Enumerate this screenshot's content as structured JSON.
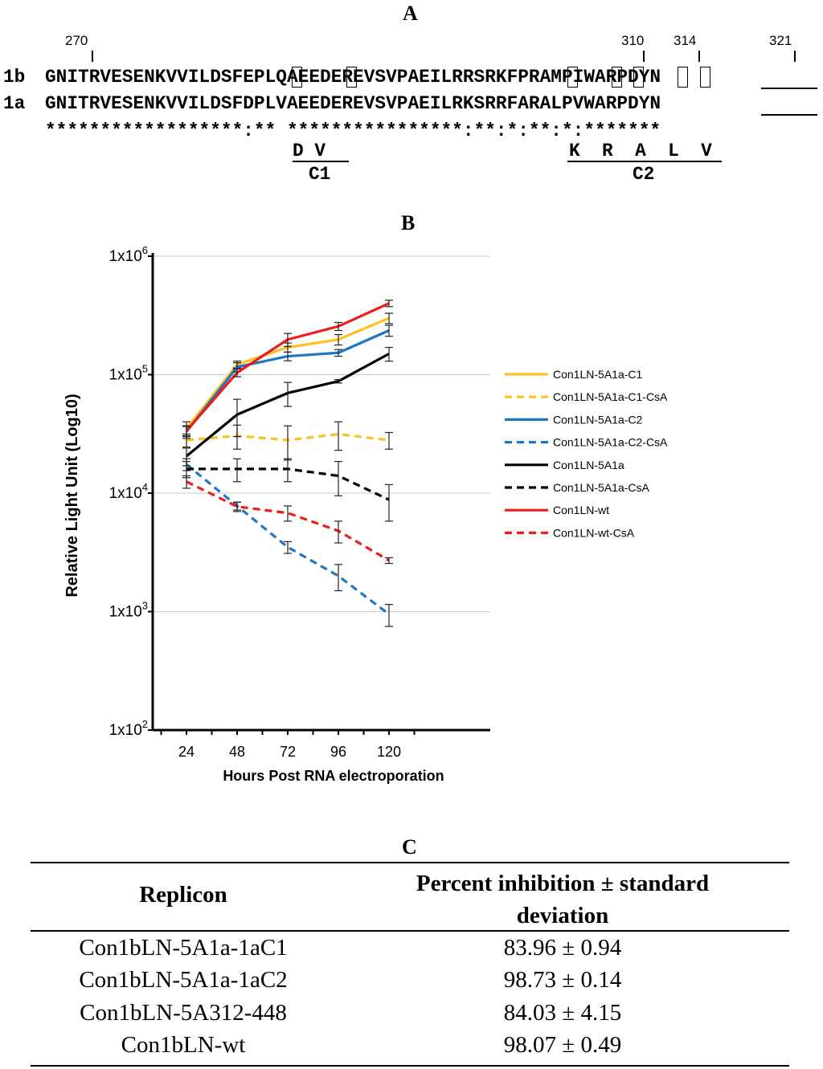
{
  "panel_a": {
    "label": "A",
    "positions": [
      "270",
      "310",
      "314",
      "321"
    ],
    "seq_1b_name": "1b",
    "seq_1b": "GNITRVESENKVVILDSFEPLQAEEDEREVSVPAEILRRSRKFPRAMPIWARPDYN",
    "seq_1a_name": "1a",
    "seq_1a": "GNITRVESENKVVILDSFDPLVAEEDEREVSVPAEILRKSRRFARALPVWARPDYN",
    "conservation": "******************:** ****************:**:*:**:*:*******",
    "c1_residues": "D V",
    "c1_label": "C1",
    "c2_residues": "K  R  A  L  V",
    "c2_label": "C2"
  },
  "panel_b": {
    "label": "B"
  },
  "chart_data": {
    "type": "line",
    "title": "",
    "xlabel": "Hours Post RNA electroporation",
    "ylabel": "Relative Light Unit (Log10)",
    "yscale": "log",
    "ylim": [
      100,
      1000000
    ],
    "x": [
      24,
      48,
      72,
      96,
      120
    ],
    "x_tick_labels": [
      "24",
      "48",
      "72",
      "96",
      "120"
    ],
    "y_tick_labels": [
      "1x10^6",
      "1x10^5",
      "1x10^4",
      "1x10^3",
      "1x10^2"
    ],
    "legend_position": "right",
    "series": [
      {
        "name": "Con1LN-5A1a-C1",
        "color": "#FFC020",
        "dashed": false,
        "values": [
          35000,
          122000,
          170000,
          198000,
          300000
        ],
        "errors": [
          5000,
          8000,
          15000,
          20000,
          30000
        ]
      },
      {
        "name": "Con1LN-5A1a-C1-CsA",
        "color": "#FFC020",
        "dashed": true,
        "values": [
          28000,
          30500,
          28000,
          31500,
          28000
        ],
        "errors": [
          3500,
          7000,
          9000,
          8500,
          4500
        ]
      },
      {
        "name": "Con1LN-5A1a-C2",
        "color": "#1F77C4",
        "dashed": false,
        "values": [
          33000,
          116000,
          143000,
          153000,
          236000
        ],
        "errors": [
          4000,
          10000,
          12000,
          10000,
          25000
        ]
      },
      {
        "name": "Con1LN-5A1a-C2-CsA",
        "color": "#1F77C4",
        "dashed": true,
        "values": [
          17500,
          7800,
          3500,
          2000,
          950
        ],
        "errors": [
          2000,
          600,
          400,
          500,
          200
        ]
      },
      {
        "name": "Con1LN-5A1a",
        "color": "#000000",
        "dashed": false,
        "values": [
          20500,
          46000,
          70000,
          88000,
          150000
        ],
        "errors": [
          3500,
          16000,
          16000,
          3000,
          20000
        ]
      },
      {
        "name": "Con1LN-5A1a-CsA",
        "color": "#000000",
        "dashed": true,
        "values": [
          16000,
          16000,
          16000,
          14000,
          8800
        ],
        "errors": [
          2500,
          3500,
          3500,
          4500,
          3000
        ]
      },
      {
        "name": "Con1LN-wt",
        "color": "#EE1C1C",
        "dashed": false,
        "values": [
          33500,
          104000,
          198000,
          256000,
          400000
        ],
        "errors": [
          3000,
          8000,
          25000,
          20000,
          25000
        ]
      },
      {
        "name": "Con1LN-wt-CsA",
        "color": "#EE1C1C",
        "dashed": true,
        "values": [
          12500,
          7700,
          6800,
          4800,
          2700
        ],
        "errors": [
          1500,
          700,
          1000,
          1000,
          150
        ]
      }
    ]
  },
  "panel_c": {
    "label": "C",
    "headers": [
      "Replicon",
      "Percent inhibition ± standard deviation"
    ],
    "rows": [
      [
        "Con1bLN-5A1a-1aC1",
        "83.96 ± 0.94"
      ],
      [
        "Con1bLN-5A1a-1aC2",
        "98.73 ± 0.14"
      ],
      [
        "Con1bLN-5A312-448",
        "84.03 ± 4.15"
      ],
      [
        "Con1bLN-wt",
        "98.07 ± 0.49"
      ]
    ]
  }
}
